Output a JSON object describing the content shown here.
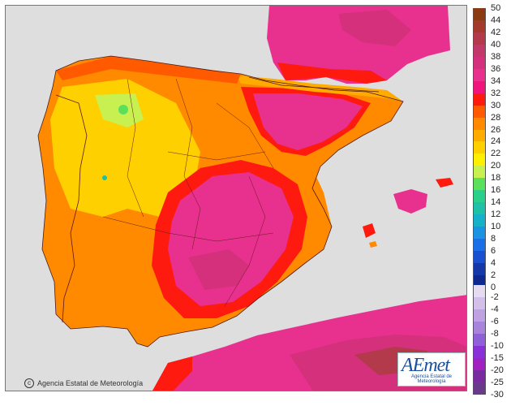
{
  "credit": {
    "text": "Agencia Estatal de Meteorología"
  },
  "logo": {
    "word": "AEmet",
    "subtitle": "Agencia Estatal de Meteorología"
  },
  "legend": {
    "upper": [
      {
        "label": "50",
        "color": "#8a3b12"
      },
      {
        "label": "44",
        "color": "#a33a2a"
      },
      {
        "label": "42",
        "color": "#b23a4a"
      },
      {
        "label": "40",
        "color": "#c2386a"
      },
      {
        "label": "38",
        "color": "#d4307c"
      },
      {
        "label": "36",
        "color": "#e8308f"
      },
      {
        "label": "34",
        "color": "#f0157a"
      },
      {
        "label": "32",
        "color": "#ff1a10"
      },
      {
        "label": "30",
        "color": "#ff5a00"
      },
      {
        "label": "28",
        "color": "#ff8a00"
      },
      {
        "label": "26",
        "color": "#ffab00"
      },
      {
        "label": "24",
        "color": "#ffd000"
      },
      {
        "label": "22",
        "color": "#fff000"
      },
      {
        "label": "20",
        "color": "#c8f050"
      },
      {
        "label": "18",
        "color": "#5ae05a"
      },
      {
        "label": "16",
        "color": "#2ad08a"
      },
      {
        "label": "14",
        "color": "#1ec0a6"
      },
      {
        "label": "12",
        "color": "#16b0c8"
      },
      {
        "label": "10",
        "color": "#1a94e0"
      },
      {
        "label": "8",
        "color": "#1a6ee8"
      },
      {
        "label": "6",
        "color": "#1a50d0"
      },
      {
        "label": "4",
        "color": "#1438a8"
      },
      {
        "label": "2",
        "color": "#0e2890"
      },
      {
        "label": "0",
        "color": "#0a1868"
      }
    ],
    "lower": [
      {
        "label": "-2",
        "color": "#e6dcf2"
      },
      {
        "label": "-4",
        "color": "#d2c0ea"
      },
      {
        "label": "-6",
        "color": "#bea2e2"
      },
      {
        "label": "-8",
        "color": "#a884da"
      },
      {
        "label": "-10",
        "color": "#9060d8"
      },
      {
        "label": "-15",
        "color": "#8a30d8"
      },
      {
        "label": "-20",
        "color": "#a020c0"
      },
      {
        "label": "-25",
        "color": "#7a2aa0"
      },
      {
        "label": "-30",
        "color": "#6a3a8a"
      }
    ]
  }
}
